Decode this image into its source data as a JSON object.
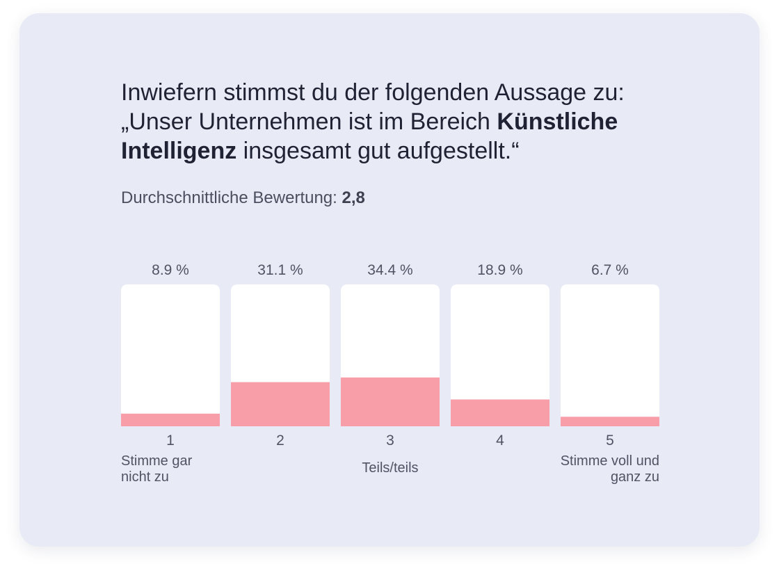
{
  "question": {
    "line1": "Inwiefern stimmst du der folgenden Aussage zu:",
    "line2_pre": "„Unser Unternehmen ist im Bereich ",
    "line2_bold": "Künstliche",
    "line3_bold": "Intelligenz",
    "line3_post": " insgesamt gut aufgestellt.“"
  },
  "average": {
    "label": "Durchschnittliche Bewertung: ",
    "value": "2,8"
  },
  "scale_labels": {
    "low": "Stimme gar nicht zu",
    "mid": "Teils/teils",
    "high": "Stimme voll und ganz zu"
  },
  "colors": {
    "card": "#e8eaf6",
    "bar_track": "#ffffff",
    "bar_fill": "#f79ea9",
    "text": "#1e2233"
  },
  "chart_data": {
    "type": "bar",
    "title": "Inwiefern stimmst du der folgenden Aussage zu: „Unser Unternehmen ist im Bereich Künstliche Intelligenz insgesamt gut aufgestellt.“",
    "categories": [
      "1",
      "2",
      "3",
      "4",
      "5"
    ],
    "values": [
      8.9,
      31.1,
      34.4,
      18.9,
      6.7
    ],
    "value_labels": [
      "8.9 %",
      "31.1 %",
      "34.4 %",
      "18.9 %",
      "6.7 %"
    ],
    "unit": "%",
    "ylim": [
      0,
      100
    ],
    "xlabel": "",
    "ylabel": "",
    "grid": false
  }
}
